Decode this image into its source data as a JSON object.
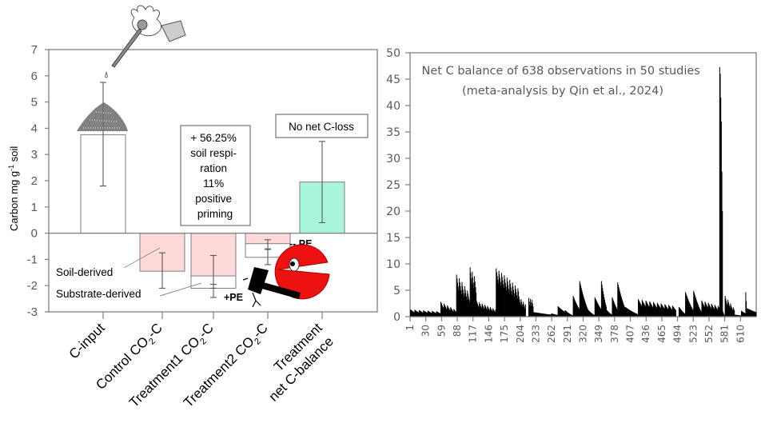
{
  "chart_data": [
    {
      "type": "bar",
      "title": "",
      "ylabel": "Carbon mg g-1 soil",
      "ylabel_parts": {
        "main": "Carbon mg g",
        "sup": "-1",
        "tail": " soil"
      },
      "ylim": [
        -3,
        7
      ],
      "yticks": [
        7,
        6,
        5,
        4,
        3,
        2,
        1,
        0,
        -1,
        -2,
        -3
      ],
      "grid": false,
      "categories": [
        {
          "label": [
            "C-input"
          ]
        },
        {
          "label": [
            "Control CO",
            "2",
            "-C"
          ]
        },
        {
          "label": [
            "Treatment1 CO",
            "2",
            "-C"
          ]
        },
        {
          "label": [
            "Treatment2 CO",
            "2",
            "-C"
          ]
        },
        {
          "label": [
            "Treatment",
            "net C-balance"
          ]
        }
      ],
      "bars": [
        {
          "category": "C-input",
          "component": "total",
          "value": 3.75,
          "color": "#ffffff",
          "err_low": 1.8,
          "err_high": 5.75
        },
        {
          "category": "Control CO2-C",
          "component": "soil-derived",
          "value": -1.45,
          "color": "#fdd9d9",
          "err_low": -2.1,
          "err_high": -0.75
        },
        {
          "category": "Treatment1 CO2-C",
          "component": "soil-derived",
          "value": -1.63,
          "color": "#fdd9d9",
          "err_low": -2.1,
          "err_high": -0.85
        },
        {
          "category": "Treatment1 CO2-C",
          "component": "substrate-derived",
          "value": -2.1,
          "color": "#ffffff",
          "err_low": -2.45,
          "err_high": -1.95
        },
        {
          "category": "Treatment2 CO2-C",
          "component": "soil-derived",
          "value": -0.4,
          "color": "#fdd9d9",
          "err_low": -0.62,
          "err_high": -0.25
        },
        {
          "category": "Treatment2 CO2-C",
          "component": "substrate-derived",
          "value": -0.92,
          "color": "#ffffff",
          "err_low": -1.2,
          "err_high": -0.6
        },
        {
          "category": "Treatment net C-balance",
          "component": "total",
          "value": 1.95,
          "color": "#a8f5dc",
          "err_low": 0.4,
          "err_high": 3.5
        }
      ],
      "annotations": {
        "priming_box": [
          "+ 56.25%",
          "soil respi-",
          "ration",
          "11%",
          "positive",
          "priming"
        ],
        "no_loss_box": "No net C-loss",
        "soil_derived": "Soil-derived",
        "substrate_derived": "Substrate-derived",
        "positive_pe": "+PE",
        "negative_pe": "-- PE"
      },
      "illustrations": [
        "hand-pouring-substrate",
        "substrate-pile",
        "pacman-with-hammer"
      ]
    },
    {
      "type": "bar",
      "title": [
        "Net C balance of 638 observations in 50 studies",
        "(meta-analysis by Qin et al., 2024)"
      ],
      "xlabel": "",
      "ylabel": "",
      "ylim": [
        0,
        50
      ],
      "yticks": [
        50,
        45,
        40,
        35,
        30,
        25,
        20,
        15,
        10,
        5,
        0
      ],
      "xlim": [
        1,
        638
      ],
      "xticks": [
        1,
        30,
        59,
        88,
        117,
        146,
        175,
        204,
        233,
        262,
        291,
        320,
        349,
        378,
        407,
        436,
        465,
        494,
        523,
        552,
        581,
        610
      ],
      "grid": false,
      "bar_color": "#000000",
      "n_observations": 638,
      "segments": [
        {
          "from": 1,
          "to": 56,
          "start": 1.1,
          "end": 0.8,
          "period": 8
        },
        {
          "from": 57,
          "to": 85,
          "start": 2.3,
          "end": 1.0,
          "period": 6
        },
        {
          "from": 86,
          "to": 110,
          "start": 6.7,
          "end": 3.5,
          "period": 5
        },
        {
          "from": 111,
          "to": 122,
          "start": 8.1,
          "end": 5.8,
          "period": 4
        },
        {
          "from": 123,
          "to": 158,
          "start": 2.4,
          "end": 1.1,
          "period": 5
        },
        {
          "from": 159,
          "to": 200,
          "start": 7.9,
          "end": 4.3,
          "period": 5
        },
        {
          "from": 201,
          "to": 213,
          "start": 3.1,
          "end": 1.9,
          "period": 4
        },
        {
          "from": 214,
          "to": 218,
          "start": 0.0,
          "end": 0.0,
          "period": 5
        },
        {
          "from": 219,
          "to": 227,
          "start": 2.9,
          "end": 2.5,
          "period": 3
        },
        {
          "from": 228,
          "to": 260,
          "start": 0.7,
          "end": 0.5,
          "period": 33
        },
        {
          "from": 261,
          "to": 272,
          "start": 0.5,
          "end": 0.4,
          "period": 12
        },
        {
          "from": 273,
          "to": 285,
          "start": 1.6,
          "end": 1.2,
          "period": 13
        },
        {
          "from": 286,
          "to": 300,
          "start": 1.0,
          "end": 0.3,
          "period": 15
        },
        {
          "from": 301,
          "to": 312,
          "start": 3.2,
          "end": 1.9,
          "period": 12
        },
        {
          "from": 313,
          "to": 328,
          "start": 5.5,
          "end": 1.8,
          "period": 16
        },
        {
          "from": 329,
          "to": 340,
          "start": 1.0,
          "end": 0.4,
          "period": 12
        },
        {
          "from": 341,
          "to": 352,
          "start": 3.0,
          "end": 1.9,
          "period": 12
        },
        {
          "from": 353,
          "to": 362,
          "start": 5.5,
          "end": 2.4,
          "period": 10
        },
        {
          "from": 363,
          "to": 372,
          "start": 1.0,
          "end": 0.5,
          "period": 10
        },
        {
          "from": 373,
          "to": 382,
          "start": 3.0,
          "end": 1.8,
          "period": 10
        },
        {
          "from": 383,
          "to": 396,
          "start": 5.3,
          "end": 2.3,
          "period": 14
        },
        {
          "from": 397,
          "to": 420,
          "start": 1.5,
          "end": 0.6,
          "period": 24
        },
        {
          "from": 421,
          "to": 490,
          "start": 2.7,
          "end": 1.6,
          "period": 7
        },
        {
          "from": 491,
          "to": 495,
          "start": 0.0,
          "end": 0.0,
          "period": 5
        },
        {
          "from": 496,
          "to": 507,
          "start": 1.5,
          "end": 0.7,
          "period": 12
        },
        {
          "from": 508,
          "to": 522,
          "start": 3.8,
          "end": 1.6,
          "period": 15
        },
        {
          "from": 523,
          "to": 537,
          "start": 4.0,
          "end": 1.2,
          "period": 15
        },
        {
          "from": 538,
          "to": 570,
          "start": 2.5,
          "end": 1.6,
          "period": 6
        },
        {
          "from": 571,
          "to": 572,
          "start": 47.3,
          "end": 46.0,
          "period": 2
        },
        {
          "from": 573,
          "to": 574,
          "start": 41.5,
          "end": 37.0,
          "period": 2
        },
        {
          "from": 575,
          "to": 576,
          "start": 27.5,
          "end": 20.0,
          "period": 2
        },
        {
          "from": 577,
          "to": 580,
          "start": 0.8,
          "end": 0.3,
          "period": 4
        },
        {
          "from": 581,
          "to": 598,
          "start": 3.2,
          "end": 1.2,
          "period": 5
        },
        {
          "from": 599,
          "to": 610,
          "start": 0.3,
          "end": 0.3,
          "period": 12
        },
        {
          "from": 611,
          "to": 618,
          "start": 0.9,
          "end": 0.8,
          "period": 8
        },
        {
          "from": 619,
          "to": 620,
          "start": 3.8,
          "end": 3.8,
          "period": 2
        },
        {
          "from": 621,
          "to": 638,
          "start": 1.3,
          "end": 1.1,
          "period": 18
        }
      ]
    }
  ]
}
